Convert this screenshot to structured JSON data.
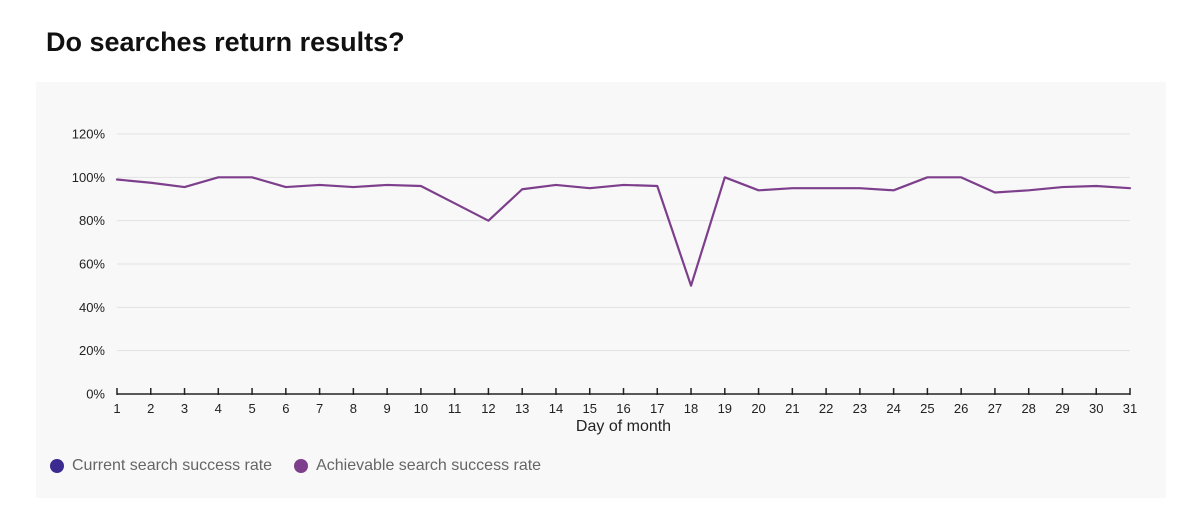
{
  "page": {
    "title": "Do searches return results?"
  },
  "colors": {
    "current": "#3b2a8f",
    "achievable": "#7d3f8c",
    "grid": "#e2e2e2",
    "axis": "#222222",
    "card_background": "#f8f8f8"
  },
  "chart_data": {
    "type": "line",
    "title": "Do searches return results?",
    "xlabel": "Day of month",
    "ylabel": "",
    "x": [
      1,
      2,
      3,
      4,
      5,
      6,
      7,
      8,
      9,
      10,
      11,
      12,
      13,
      14,
      15,
      16,
      17,
      18,
      19,
      20,
      21,
      22,
      23,
      24,
      25,
      26,
      27,
      28,
      29,
      30,
      31
    ],
    "xlim": [
      1,
      31
    ],
    "ylim": [
      0,
      120
    ],
    "yticks": [
      0,
      20,
      40,
      60,
      80,
      100,
      120
    ],
    "ytick_format": "%",
    "grid": true,
    "legend_position": "bottom-left",
    "legend": [
      {
        "name": "Current search success rate",
        "color": "#3b2a8f"
      },
      {
        "name": "Achievable search success rate",
        "color": "#7d3f8c"
      }
    ],
    "series": [
      {
        "name": "Achievable search success rate",
        "color": "#7d3f8c",
        "values": [
          99,
          97.5,
          95.5,
          100,
          100,
          95.5,
          96.5,
          95.5,
          96.5,
          96,
          88,
          80,
          94.5,
          96.5,
          95,
          96.5,
          96,
          50,
          100,
          94,
          95,
          95,
          95,
          94,
          100,
          100,
          93,
          94,
          95.5,
          96,
          95
        ]
      }
    ]
  }
}
